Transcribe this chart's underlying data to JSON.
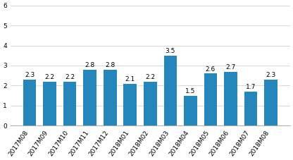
{
  "categories": [
    "2017M08",
    "2017M09",
    "2017M10",
    "2017M11",
    "2017M12",
    "2018M01",
    "2018M02",
    "2018M03",
    "2018M04",
    "2018M05",
    "2018M06",
    "2018M07",
    "2018M08"
  ],
  "values": [
    2.3,
    2.2,
    2.2,
    2.8,
    2.8,
    2.1,
    2.2,
    3.5,
    1.5,
    2.6,
    2.7,
    1.7,
    2.3
  ],
  "bar_color": "#2586bb",
  "ylim": [
    0,
    6
  ],
  "yticks": [
    0,
    1,
    2,
    3,
    4,
    5,
    6
  ],
  "tick_fontsize": 6.5,
  "bar_label_fontsize": 6.5,
  "background_color": "#ffffff",
  "grid_color": "#d8d8d8"
}
